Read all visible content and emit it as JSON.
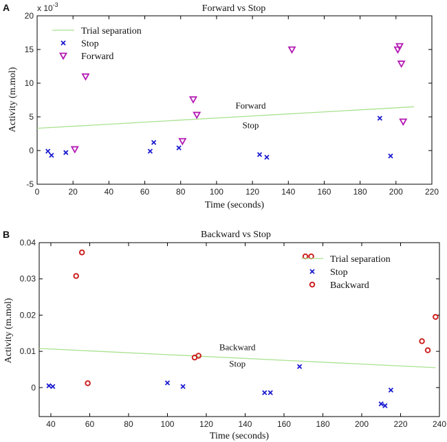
{
  "chart_data": [
    {
      "panel_label": "A",
      "type": "scatter",
      "title": "Forward vs Stop",
      "xlabel": "Time (seconds)",
      "ylabel": "Activity (m.mol)",
      "y_exponent_label": "x 10",
      "y_exponent_power": "-3",
      "xlim": [
        0,
        220
      ],
      "ylim": [
        -5,
        20
      ],
      "xticks": [
        0,
        20,
        40,
        60,
        80,
        100,
        120,
        140,
        160,
        180,
        200,
        220
      ],
      "yticks": [
        -5,
        0,
        5,
        10,
        15,
        20
      ],
      "legend": {
        "position": "top-left",
        "entries": [
          "Trial separation",
          "Stop",
          "Forward"
        ]
      },
      "series": [
        {
          "name": "Trial separation",
          "kind": "line",
          "color": "#a8e28f",
          "x": [
            0,
            210
          ],
          "y": [
            3.3,
            6.5
          ]
        },
        {
          "name": "Stop",
          "kind": "marker-x",
          "color": "#1a1ad0",
          "x": [
            6,
            8,
            16,
            63,
            65,
            79,
            124,
            128,
            191,
            197
          ],
          "y": [
            -0.1,
            -0.7,
            -0.3,
            -0.1,
            1.2,
            0.4,
            -0.6,
            -1.0,
            4.8,
            -0.8
          ]
        },
        {
          "name": "Forward",
          "kind": "marker-triangle-down",
          "color": "#b41ab4",
          "x": [
            21,
            27,
            81,
            87,
            89,
            142,
            201,
            202,
            203,
            204
          ],
          "y": [
            0.2,
            11.0,
            1.4,
            7.6,
            5.3,
            15.0,
            15.0,
            15.5,
            12.9,
            4.3
          ]
        }
      ],
      "annotations": [
        {
          "text": "Forward",
          "x": 119,
          "y": 6.2
        },
        {
          "text": "Stop",
          "x": 119,
          "y": 3.3
        }
      ]
    },
    {
      "panel_label": "B",
      "type": "scatter",
      "title": "Backward vs Stop",
      "xlabel": "Time (seconds)",
      "ylabel": "Activity (m.mol)",
      "xlim": [
        34,
        240
      ],
      "ylim": [
        -0.008,
        0.04
      ],
      "xticks": [
        40,
        60,
        80,
        100,
        120,
        140,
        160,
        180,
        200,
        220,
        240
      ],
      "yticks": [
        0,
        0.01,
        0.02,
        0.03,
        0.04
      ],
      "ytick_labels": [
        "0",
        "0.01",
        "0.02",
        "0.03",
        "0.04"
      ],
      "legend": {
        "position": "top-right",
        "entries": [
          "Trial separation",
          "Stop",
          "Backward"
        ]
      },
      "series": [
        {
          "name": "Trial separation",
          "kind": "line",
          "color": "#a8e28f",
          "x": [
            34,
            238
          ],
          "y": [
            0.0108,
            0.0055
          ]
        },
        {
          "name": "Stop",
          "kind": "marker-x",
          "color": "#1a1ad0",
          "x": [
            39,
            41,
            100,
            108,
            150,
            153,
            168,
            210,
            212,
            215
          ],
          "y": [
            0.0005,
            0.0003,
            0.0013,
            0.0003,
            -0.0014,
            -0.0014,
            0.0058,
            -0.0045,
            -0.005,
            -0.0007
          ]
        },
        {
          "name": "Backward",
          "kind": "marker-circle",
          "color": "#cc1a1a",
          "x": [
            53,
            56,
            59,
            114,
            116,
            171,
            174,
            231,
            234,
            238
          ],
          "y": [
            0.0308,
            0.0373,
            0.0012,
            0.0083,
            0.0088,
            0.0362,
            0.0362,
            0.0128,
            0.0103,
            0.0195
          ]
        }
      ],
      "annotations": [
        {
          "text": "Backward",
          "x": 136,
          "y": 0.0103
        },
        {
          "text": "Stop",
          "x": 136,
          "y": 0.0058
        }
      ]
    }
  ]
}
